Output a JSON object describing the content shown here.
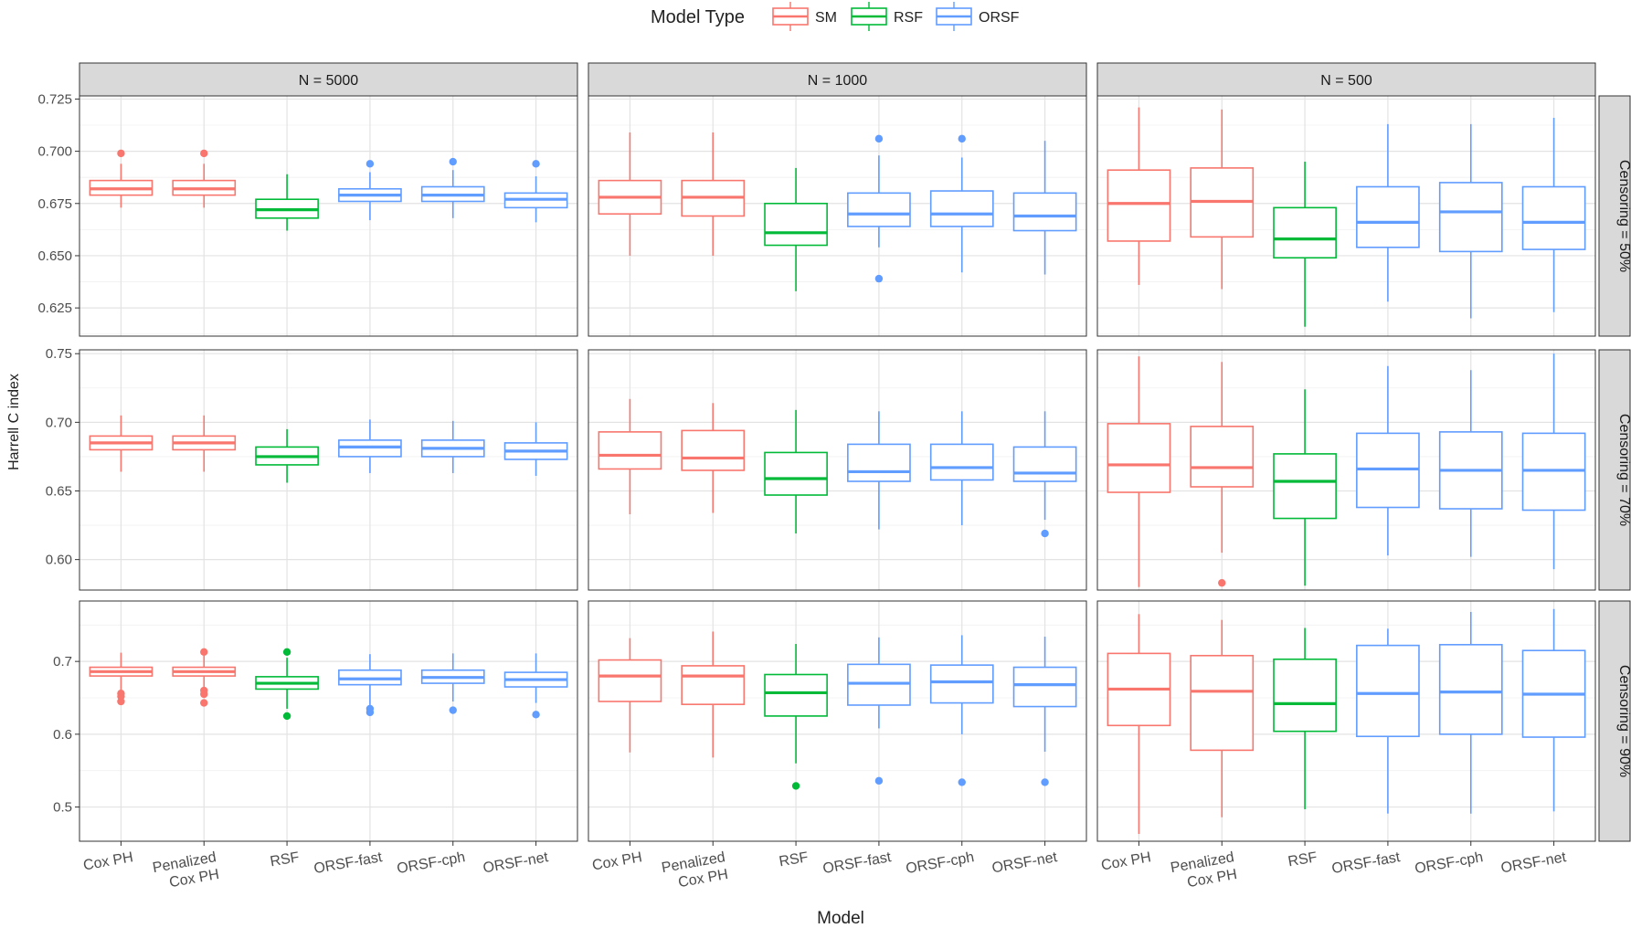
{
  "chart_data": {
    "type": "boxplot",
    "legend": {
      "title": "Model Type",
      "position": "top",
      "items": [
        {
          "name": "SM",
          "color": "#F8766D"
        },
        {
          "name": "RSF",
          "color": "#00BA38"
        },
        {
          "name": "ORSF",
          "color": "#619CFF"
        }
      ]
    },
    "xlabel": "Model",
    "ylabel": "Harrell C index",
    "categories": [
      {
        "label": "Cox PH",
        "group": "SM"
      },
      {
        "label": "Penalized Cox PH",
        "group": "SM"
      },
      {
        "label": "RSF",
        "group": "RSF"
      },
      {
        "label": "ORSF-fast",
        "group": "ORSF"
      },
      {
        "label": "ORSF-cph",
        "group": "ORSF"
      },
      {
        "label": "ORSF-net",
        "group": "ORSF"
      }
    ],
    "columns": [
      "N = 5000",
      "N = 1000",
      "N = 500"
    ],
    "rows": [
      {
        "label": "Censoring = 50%",
        "ylim": [
          0.6115,
          0.7265
        ],
        "yticks": [
          0.625,
          0.65,
          0.675,
          0.7,
          0.725
        ],
        "ytick_labels": [
          "0.625",
          "0.650",
          "0.675",
          "0.700",
          "0.725"
        ],
        "panels": [
          [
            {
              "whislo": 0.673,
              "q1": 0.679,
              "med": 0.682,
              "q3": 0.686,
              "whishi": 0.694,
              "fliers": [
                0.699
              ]
            },
            {
              "whislo": 0.673,
              "q1": 0.679,
              "med": 0.682,
              "q3": 0.686,
              "whishi": 0.694,
              "fliers": [
                0.699
              ]
            },
            {
              "whislo": 0.662,
              "q1": 0.668,
              "med": 0.672,
              "q3": 0.677,
              "whishi": 0.689,
              "fliers": []
            },
            {
              "whislo": 0.667,
              "q1": 0.676,
              "med": 0.679,
              "q3": 0.682,
              "whishi": 0.69,
              "fliers": [
                0.694
              ]
            },
            {
              "whislo": 0.668,
              "q1": 0.676,
              "med": 0.679,
              "q3": 0.683,
              "whishi": 0.691,
              "fliers": [
                0.695
              ]
            },
            {
              "whislo": 0.666,
              "q1": 0.673,
              "med": 0.677,
              "q3": 0.68,
              "whishi": 0.688,
              "fliers": [
                0.694
              ]
            }
          ],
          [
            {
              "whislo": 0.65,
              "q1": 0.67,
              "med": 0.678,
              "q3": 0.686,
              "whishi": 0.709,
              "fliers": []
            },
            {
              "whislo": 0.65,
              "q1": 0.669,
              "med": 0.678,
              "q3": 0.686,
              "whishi": 0.709,
              "fliers": []
            },
            {
              "whislo": 0.633,
              "q1": 0.655,
              "med": 0.661,
              "q3": 0.675,
              "whishi": 0.692,
              "fliers": []
            },
            {
              "whislo": 0.654,
              "q1": 0.664,
              "med": 0.67,
              "q3": 0.68,
              "whishi": 0.698,
              "fliers": [
                0.706,
                0.639
              ]
            },
            {
              "whislo": 0.642,
              "q1": 0.664,
              "med": 0.67,
              "q3": 0.681,
              "whishi": 0.697,
              "fliers": [
                0.706
              ]
            },
            {
              "whislo": 0.641,
              "q1": 0.662,
              "med": 0.669,
              "q3": 0.68,
              "whishi": 0.705,
              "fliers": []
            }
          ],
          [
            {
              "whislo": 0.636,
              "q1": 0.657,
              "med": 0.675,
              "q3": 0.691,
              "whishi": 0.721,
              "fliers": []
            },
            {
              "whislo": 0.634,
              "q1": 0.659,
              "med": 0.676,
              "q3": 0.692,
              "whishi": 0.72,
              "fliers": []
            },
            {
              "whislo": 0.616,
              "q1": 0.649,
              "med": 0.658,
              "q3": 0.673,
              "whishi": 0.695,
              "fliers": []
            },
            {
              "whislo": 0.628,
              "q1": 0.654,
              "med": 0.666,
              "q3": 0.683,
              "whishi": 0.713,
              "fliers": []
            },
            {
              "whislo": 0.62,
              "q1": 0.652,
              "med": 0.671,
              "q3": 0.685,
              "whishi": 0.713,
              "fliers": []
            },
            {
              "whislo": 0.623,
              "q1": 0.653,
              "med": 0.666,
              "q3": 0.683,
              "whishi": 0.716,
              "fliers": []
            }
          ]
        ]
      },
      {
        "label": "Censoring = 70%",
        "ylim": [
          0.5778,
          0.7528
        ],
        "yticks": [
          0.6,
          0.65,
          0.7,
          0.75
        ],
        "ytick_labels": [
          "0.60",
          "0.65",
          "0.70",
          "0.75"
        ],
        "panels": [
          [
            {
              "whislo": 0.664,
              "q1": 0.68,
              "med": 0.685,
              "q3": 0.69,
              "whishi": 0.705,
              "fliers": []
            },
            {
              "whislo": 0.664,
              "q1": 0.68,
              "med": 0.685,
              "q3": 0.69,
              "whishi": 0.705,
              "fliers": []
            },
            {
              "whislo": 0.656,
              "q1": 0.669,
              "med": 0.675,
              "q3": 0.682,
              "whishi": 0.695,
              "fliers": []
            },
            {
              "whislo": 0.663,
              "q1": 0.675,
              "med": 0.682,
              "q3": 0.687,
              "whishi": 0.702,
              "fliers": []
            },
            {
              "whislo": 0.663,
              "q1": 0.675,
              "med": 0.681,
              "q3": 0.687,
              "whishi": 0.701,
              "fliers": []
            },
            {
              "whislo": 0.661,
              "q1": 0.673,
              "med": 0.679,
              "q3": 0.685,
              "whishi": 0.7,
              "fliers": []
            }
          ],
          [
            {
              "whislo": 0.633,
              "q1": 0.666,
              "med": 0.676,
              "q3": 0.693,
              "whishi": 0.717,
              "fliers": []
            },
            {
              "whislo": 0.634,
              "q1": 0.665,
              "med": 0.674,
              "q3": 0.694,
              "whishi": 0.714,
              "fliers": []
            },
            {
              "whislo": 0.619,
              "q1": 0.647,
              "med": 0.659,
              "q3": 0.678,
              "whishi": 0.709,
              "fliers": []
            },
            {
              "whislo": 0.622,
              "q1": 0.657,
              "med": 0.664,
              "q3": 0.684,
              "whishi": 0.708,
              "fliers": []
            },
            {
              "whislo": 0.625,
              "q1": 0.658,
              "med": 0.667,
              "q3": 0.684,
              "whishi": 0.708,
              "fliers": []
            },
            {
              "whislo": 0.629,
              "q1": 0.657,
              "med": 0.663,
              "q3": 0.682,
              "whishi": 0.708,
              "fliers": [
                0.619
              ]
            }
          ],
          [
            {
              "whislo": 0.58,
              "q1": 0.649,
              "med": 0.669,
              "q3": 0.699,
              "whishi": 0.748,
              "fliers": []
            },
            {
              "whislo": 0.605,
              "q1": 0.653,
              "med": 0.667,
              "q3": 0.697,
              "whishi": 0.744,
              "fliers": [
                0.583
              ]
            },
            {
              "whislo": 0.581,
              "q1": 0.63,
              "med": 0.657,
              "q3": 0.677,
              "whishi": 0.724,
              "fliers": []
            },
            {
              "whislo": 0.603,
              "q1": 0.638,
              "med": 0.666,
              "q3": 0.692,
              "whishi": 0.741,
              "fliers": []
            },
            {
              "whislo": 0.602,
              "q1": 0.637,
              "med": 0.665,
              "q3": 0.693,
              "whishi": 0.738,
              "fliers": []
            },
            {
              "whislo": 0.593,
              "q1": 0.636,
              "med": 0.665,
              "q3": 0.692,
              "whishi": 0.75,
              "fliers": []
            }
          ]
        ]
      },
      {
        "label": "Censoring = 90%",
        "ylim": [
          0.453,
          0.783
        ],
        "yticks": [
          0.5,
          0.6,
          0.7
        ],
        "ytick_labels": [
          "0.5",
          "0.6",
          "0.7"
        ],
        "panels": [
          [
            {
              "whislo": 0.66,
              "q1": 0.68,
              "med": 0.686,
              "q3": 0.692,
              "whishi": 0.712,
              "fliers": [
                0.656,
                0.652,
                0.645
              ]
            },
            {
              "whislo": 0.662,
              "q1": 0.68,
              "med": 0.686,
              "q3": 0.692,
              "whishi": 0.708,
              "fliers": [
                0.713,
                0.66,
                0.655,
                0.643
              ]
            },
            {
              "whislo": 0.635,
              "q1": 0.662,
              "med": 0.67,
              "q3": 0.679,
              "whishi": 0.705,
              "fliers": [
                0.713,
                0.625
              ]
            },
            {
              "whislo": 0.64,
              "q1": 0.668,
              "med": 0.676,
              "q3": 0.688,
              "whishi": 0.71,
              "fliers": [
                0.635,
                0.63
              ]
            },
            {
              "whislo": 0.645,
              "q1": 0.67,
              "med": 0.678,
              "q3": 0.688,
              "whishi": 0.711,
              "fliers": [
                0.633
              ]
            },
            {
              "whislo": 0.643,
              "q1": 0.665,
              "med": 0.675,
              "q3": 0.685,
              "whishi": 0.711,
              "fliers": [
                0.627
              ]
            }
          ],
          [
            {
              "whislo": 0.575,
              "q1": 0.645,
              "med": 0.68,
              "q3": 0.702,
              "whishi": 0.732,
              "fliers": []
            },
            {
              "whislo": 0.568,
              "q1": 0.641,
              "med": 0.68,
              "q3": 0.694,
              "whishi": 0.741,
              "fliers": []
            },
            {
              "whislo": 0.56,
              "q1": 0.625,
              "med": 0.657,
              "q3": 0.682,
              "whishi": 0.724,
              "fliers": [
                0.529
              ]
            },
            {
              "whislo": 0.608,
              "q1": 0.64,
              "med": 0.67,
              "q3": 0.696,
              "whishi": 0.733,
              "fliers": [
                0.536
              ]
            },
            {
              "whislo": 0.6,
              "q1": 0.643,
              "med": 0.672,
              "q3": 0.695,
              "whishi": 0.736,
              "fliers": [
                0.534
              ]
            },
            {
              "whislo": 0.576,
              "q1": 0.638,
              "med": 0.668,
              "q3": 0.692,
              "whishi": 0.734,
              "fliers": [
                0.534
              ]
            }
          ],
          [
            {
              "whislo": 0.463,
              "q1": 0.612,
              "med": 0.662,
              "q3": 0.711,
              "whishi": 0.765,
              "fliers": []
            },
            {
              "whislo": 0.486,
              "q1": 0.578,
              "med": 0.659,
              "q3": 0.708,
              "whishi": 0.757,
              "fliers": []
            },
            {
              "whislo": 0.497,
              "q1": 0.604,
              "med": 0.642,
              "q3": 0.703,
              "whishi": 0.746,
              "fliers": []
            },
            {
              "whislo": 0.491,
              "q1": 0.597,
              "med": 0.656,
              "q3": 0.722,
              "whishi": 0.745,
              "fliers": []
            },
            {
              "whislo": 0.491,
              "q1": 0.6,
              "med": 0.658,
              "q3": 0.723,
              "whishi": 0.768,
              "fliers": []
            },
            {
              "whislo": 0.494,
              "q1": 0.596,
              "med": 0.655,
              "q3": 0.715,
              "whishi": 0.772,
              "fliers": []
            }
          ]
        ]
      }
    ]
  }
}
